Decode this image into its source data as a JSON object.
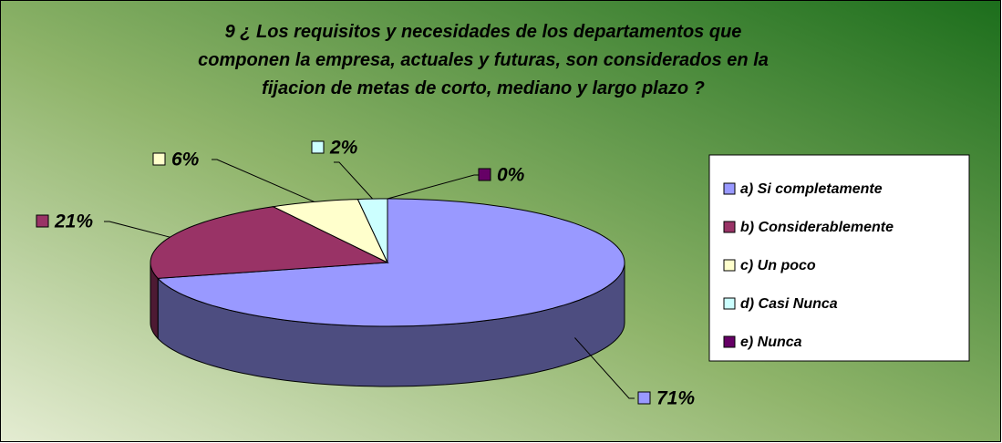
{
  "chart_data": {
    "type": "pie",
    "title": "9 ¿ Los requisitos y necesidades de los departamentos que componen la empresa, actuales y futuras, son considerados en la fijacion de metas de corto, mediano y largo plazo ?",
    "categories": [
      "a) Si completamente",
      "b) Considerablemente",
      "c) Un poco",
      "d) Casi Nunca",
      "e) Nunca"
    ],
    "values": [
      71,
      21,
      6,
      2,
      0
    ],
    "value_labels": [
      "71%",
      "21%",
      "6%",
      "2%",
      "0%"
    ],
    "colors": [
      "#9999ff",
      "#993366",
      "#ffffcc",
      "#ccffff",
      "#660066"
    ],
    "legend": "right"
  }
}
